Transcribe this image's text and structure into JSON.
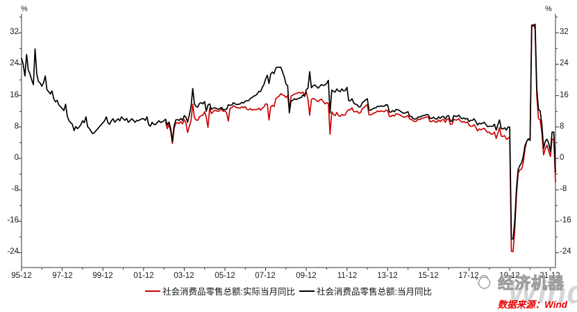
{
  "chart": {
    "y_axis": {
      "unit": "%",
      "labels": [
        "32",
        "24",
        "16",
        "8",
        "0",
        "-8",
        "-16",
        "-24"
      ]
    },
    "x_axis": {
      "labels": [
        "95-12",
        "97-12",
        "99-12",
        "01-12",
        "03-12",
        "05-12",
        "07-12",
        "09-12",
        "11-12",
        "13-12",
        "15-12",
        "17-12",
        "19-12",
        "21-12"
      ]
    },
    "legend": {
      "real": {
        "label": "社会消费品零售总额:实际当月同比",
        "color": "#cc0000"
      },
      "nominal": {
        "label": "社会消费品零售总额:当月同比",
        "color": "#000000"
      }
    },
    "source_note": "数据来源：Wind",
    "watermark": {
      "brand": "Wind",
      "account": "经济机器"
    }
  },
  "chart_data": {
    "type": "line",
    "title": "",
    "xlabel": "",
    "ylabel": "%",
    "frequency": "monthly",
    "x_start": "1995-12",
    "x_end": "2022-03",
    "ylim": [
      -28,
      37
    ],
    "y_ticks": [
      -24,
      -16,
      -8,
      0,
      8,
      16,
      24,
      32
    ],
    "y_minor_ticks": [
      -20,
      -12,
      -4,
      4,
      12,
      20,
      28,
      36
    ],
    "x_tick_labels": [
      "95-12",
      "97-12",
      "99-12",
      "01-12",
      "03-12",
      "05-12",
      "07-12",
      "09-12",
      "11-12",
      "13-12",
      "15-12",
      "17-12",
      "19-12",
      "21-12"
    ],
    "grid": false,
    "legend_position": "bottom",
    "series": [
      {
        "name": "社会消费品零售总额:当月同比",
        "color": "#000000",
        "start": "1995-12",
        "values": [
          25.5,
          24.0,
          21.0,
          26.5,
          22.5,
          21.5,
          20.0,
          18.8,
          27.9,
          21.5,
          19.6,
          19.2,
          18.4,
          19.3,
          21.0,
          17.5,
          17.0,
          16.4,
          17.2,
          15.2,
          14.4,
          14.8,
          13.6,
          13.2,
          12.7,
          12.2,
          13.8,
          10.8,
          9.6,
          9.1,
          8.7,
          7.1,
          8.1,
          7.6,
          8.0,
          8.6,
          9.6,
          9.1,
          10.6,
          8.1,
          7.6,
          6.9,
          6.3,
          6.6,
          7.1,
          7.6,
          8.1,
          8.6,
          9.1,
          9.6,
          10.6,
          9.1,
          8.7,
          9.6,
          10.1,
          9.2,
          9.7,
          10.1,
          9.6,
          10.6,
          10.1,
          9.7,
          10.2,
          9.2,
          9.6,
          10.1,
          9.7,
          9.2,
          9.7,
          9.6,
          9.9,
          10.1,
          10.1,
          9.7,
          10.6,
          8.6,
          8.2,
          9.2,
          8.7,
          8.6,
          9.1,
          9.6,
          9.2,
          9.3,
          9.6,
          10.0,
          8.5,
          9.3,
          7.7,
          4.3,
          8.3,
          9.8,
          9.9,
          9.7,
          10.2,
          9.7,
          10.9,
          10.5,
          9.2,
          11.1,
          13.2,
          17.8,
          13.9,
          13.2,
          13.1,
          14.0,
          14.2,
          13.9,
          14.5,
          12.0,
          13.6,
          13.9,
          12.5,
          12.8,
          12.9,
          12.7,
          12.5,
          12.7,
          13.0,
          12.4,
          12.5,
          12.5,
          13.7,
          13.5,
          13.6,
          14.2,
          13.9,
          13.7,
          13.8,
          13.9,
          14.3,
          14.1,
          14.6,
          14.7,
          14.7,
          15.3,
          15.5,
          15.9,
          16.0,
          16.4,
          17.1,
          17.0,
          18.1,
          18.8,
          20.2,
          21.2,
          19.1,
          21.5,
          22.0,
          21.6,
          23.0,
          23.3,
          23.2,
          23.2,
          22.0,
          20.8,
          19.0,
          18.5,
          11.6,
          14.7,
          14.8,
          15.2,
          15.0,
          15.2,
          15.4,
          15.5,
          16.2,
          15.8,
          17.5,
          17.9,
          22.1,
          18.0,
          18.5,
          18.7,
          18.3,
          17.9,
          18.4,
          18.8,
          18.6,
          18.7,
          19.1,
          19.9,
          11.6,
          17.4,
          17.1,
          16.9,
          17.7,
          17.2,
          17.0,
          17.7,
          17.2,
          17.3,
          18.1,
          14.7,
          14.7,
          15.2,
          14.1,
          13.8,
          13.7,
          13.1,
          13.2,
          14.2,
          14.5,
          14.9,
          15.2,
          12.3,
          12.3,
          12.6,
          12.8,
          12.9,
          13.3,
          13.2,
          13.4,
          13.3,
          13.3,
          13.7,
          13.6,
          11.8,
          11.8,
          12.2,
          11.9,
          12.5,
          12.4,
          12.2,
          11.9,
          11.6,
          11.5,
          11.7,
          11.9,
          10.7,
          10.7,
          10.2,
          10.0,
          10.1,
          10.6,
          10.5,
          10.8,
          10.9,
          11.0,
          11.2,
          11.1,
          10.2,
          10.2,
          10.5,
          10.1,
          10.0,
          10.6,
          10.2,
          10.6,
          10.7,
          10.0,
          10.8,
          10.9,
          9.5,
          9.5,
          10.9,
          10.7,
          10.7,
          11.0,
          10.4,
          10.1,
          10.3,
          10.0,
          10.2,
          9.4,
          9.7,
          9.7,
          10.1,
          9.4,
          8.5,
          9.0,
          8.8,
          9.0,
          9.2,
          8.6,
          8.1,
          8.2,
          8.2,
          8.2,
          8.7,
          7.2,
          8.6,
          9.8,
          7.6,
          7.5,
          7.8,
          7.2,
          8.0,
          8.0,
          -20.5,
          -20.5,
          -15.8,
          -7.5,
          -2.8,
          -1.8,
          -1.1,
          0.5,
          3.3,
          4.3,
          5.0,
          4.6,
          33.8,
          33.8,
          34.2,
          17.7,
          12.4,
          12.1,
          8.5,
          2.5,
          4.4,
          4.9,
          3.9,
          1.7,
          6.7,
          6.7,
          -3.5
        ]
      },
      {
        "name": "社会消费品零售总额:实际当月同比",
        "color": "#cc0000",
        "start": "2003-01",
        "values": [
          9.2,
          7.6,
          8.6,
          7.0,
          3.8,
          7.6,
          9.0,
          9.1,
          8.9,
          9.4,
          8.8,
          9.9,
          9.0,
          6.6,
          8.2,
          9.6,
          13.8,
          10.4,
          9.8,
          9.7,
          10.6,
          10.9,
          11.0,
          11.9,
          10.5,
          7.9,
          12.9,
          11.4,
          11.9,
          12.3,
          12.1,
          12.0,
          12.2,
          12.6,
          12.0,
          12.1,
          11.6,
          9.5,
          12.8,
          12.9,
          13.4,
          13.2,
          12.9,
          12.9,
          12.8,
          13.2,
          12.9,
          13.2,
          12.5,
          12.4,
          12.7,
          12.3,
          12.5,
          12.4,
          12.5,
          12.8,
          12.3,
          12.8,
          13.1,
          13.9,
          13.8,
          9.8,
          13.2,
          13.5,
          13.2,
          15.2,
          15.6,
          15.9,
          16.5,
          16.2,
          16.0,
          15.5,
          16.0,
          12.5,
          15.9,
          16.1,
          16.4,
          16.5,
          16.7,
          16.8,
          16.6,
          16.9,
          16.1,
          16.9,
          15.0,
          11.0,
          15.0,
          15.3,
          15.1,
          14.7,
          14.5,
          14.9,
          15.1,
          14.5,
          13.9,
          14.2,
          14.0,
          6.2,
          11.9,
          11.2,
          10.9,
          11.7,
          10.9,
          10.7,
          11.2,
          11.0,
          11.1,
          12.0,
          12.4,
          12.4,
          12.9,
          11.9,
          11.9,
          12.0,
          11.5,
          11.7,
          12.7,
          12.9,
          13.4,
          13.7,
          11.1,
          11.1,
          11.3,
          11.6,
          11.7,
          12.1,
          11.9,
          12.1,
          12.0,
          11.9,
          12.3,
          12.2,
          10.7,
          10.7,
          11.0,
          10.8,
          11.4,
          11.3,
          11.1,
          10.9,
          10.6,
          10.5,
          10.7,
          10.9,
          10.0,
          10.0,
          9.6,
          9.4,
          9.5,
          10.0,
          9.9,
          10.2,
          10.3,
          10.4,
          10.6,
          10.5,
          9.4,
          9.4,
          9.7,
          9.3,
          9.2,
          9.8,
          9.4,
          9.8,
          9.9,
          9.2,
          10.0,
          10.1,
          8.7,
          8.7,
          10.0,
          9.8,
          9.8,
          10.1,
          9.5,
          9.2,
          9.4,
          9.1,
          9.3,
          8.5,
          8.2,
          8.2,
          8.6,
          7.9,
          7.0,
          7.5,
          7.3,
          7.5,
          7.7,
          7.1,
          6.6,
          6.7,
          6.2,
          6.2,
          6.7,
          5.1,
          6.4,
          7.9,
          5.7,
          5.6,
          5.8,
          4.9,
          5.1,
          5.5,
          -23.7,
          -23.7,
          -18.1,
          -9.1,
          -3.7,
          -2.9,
          -2.7,
          -1.1,
          2.4,
          4.3,
          5.0,
          4.6,
          34.0,
          34.0,
          33.0,
          15.8,
          10.1,
          9.8,
          6.4,
          0.9,
          2.5,
          3.4,
          1.9,
          0.5,
          4.9,
          4.9,
          -6.0
        ]
      }
    ]
  }
}
